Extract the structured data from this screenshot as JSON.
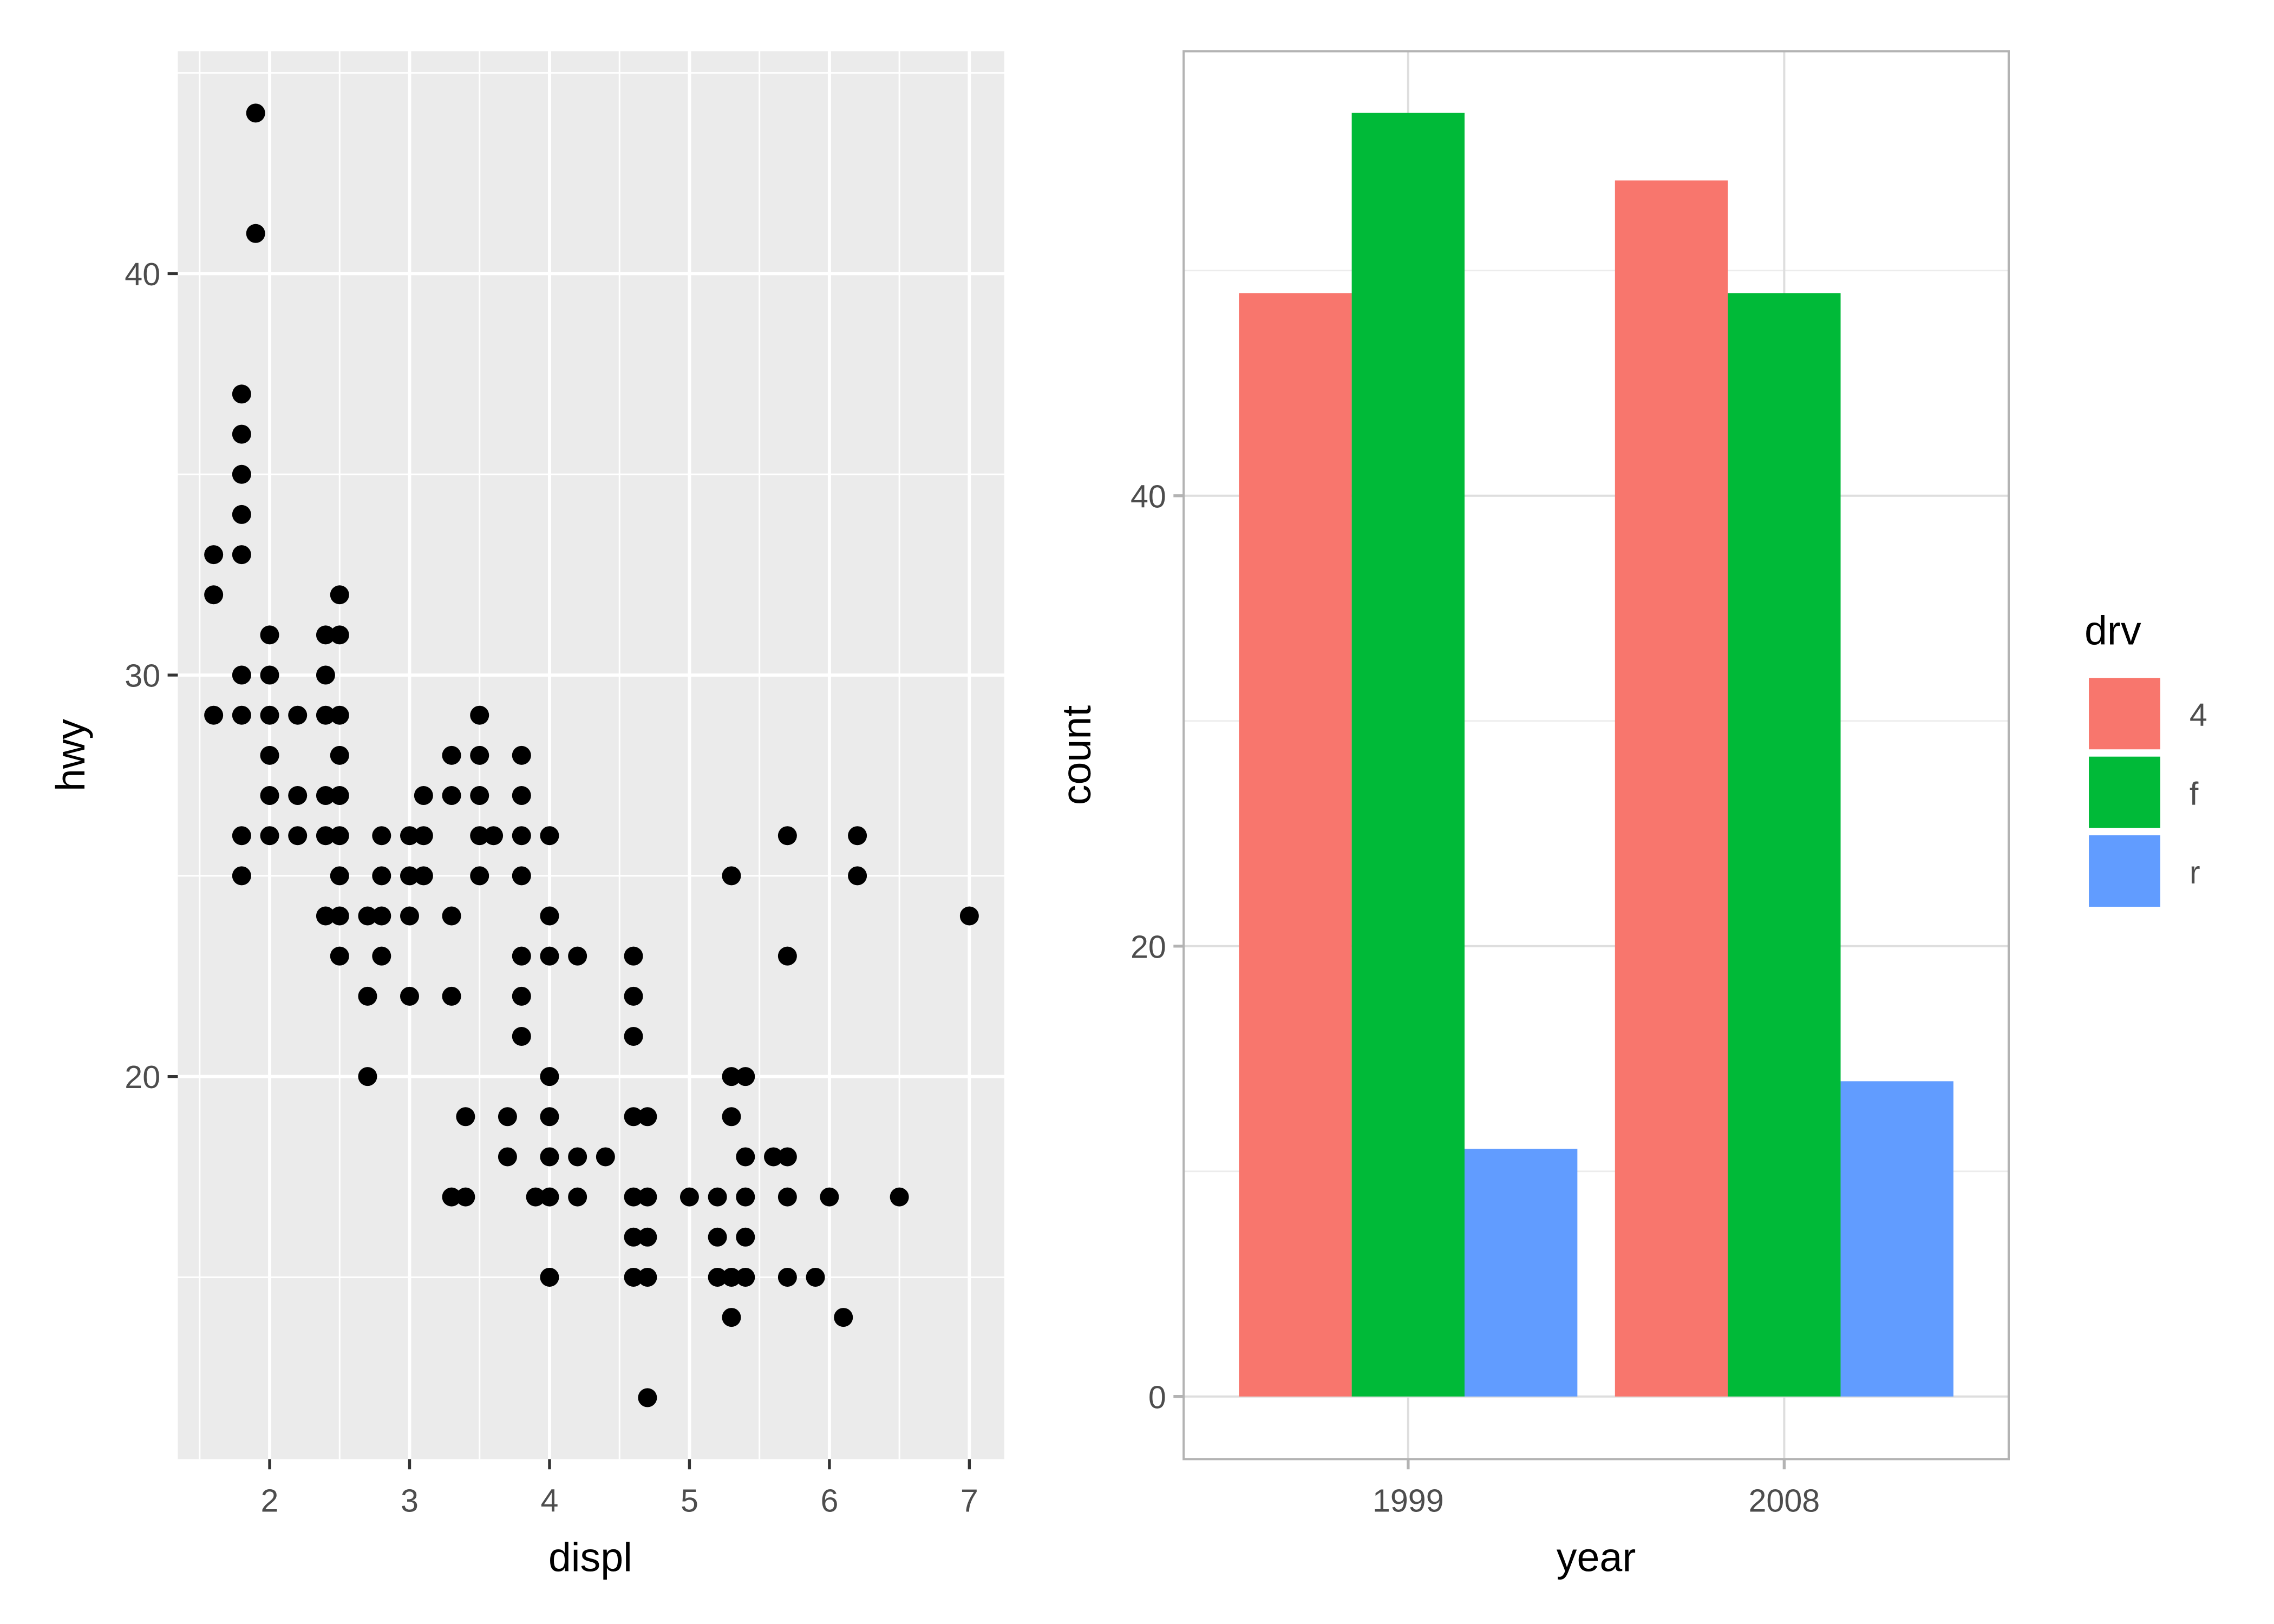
{
  "chart_data": [
    {
      "type": "scatter",
      "xlabel": "displ",
      "ylabel": "hwy",
      "xlim": [
        1.344,
        7.25
      ],
      "ylim": [
        10.47,
        45.54
      ],
      "xticks": [
        2,
        3,
        4,
        5,
        6,
        7
      ],
      "yticks": [
        20,
        30,
        40
      ],
      "grid": true,
      "points": [
        [
          1.9,
          44
        ],
        [
          1.9,
          41
        ],
        [
          1.8,
          37
        ],
        [
          1.8,
          36
        ],
        [
          1.8,
          35
        ],
        [
          1.8,
          34
        ],
        [
          1.8,
          33
        ],
        [
          1.6,
          33
        ],
        [
          1.6,
          32
        ],
        [
          1.6,
          29
        ],
        [
          1.8,
          30
        ],
        [
          1.8,
          29
        ],
        [
          1.8,
          26
        ],
        [
          1.8,
          25
        ],
        [
          2.0,
          31
        ],
        [
          2.0,
          30
        ],
        [
          2.0,
          29
        ],
        [
          2.0,
          28
        ],
        [
          2.0,
          27
        ],
        [
          2.0,
          26
        ],
        [
          2.2,
          29
        ],
        [
          2.2,
          27
        ],
        [
          2.2,
          26
        ],
        [
          2.4,
          31
        ],
        [
          2.4,
          30
        ],
        [
          2.4,
          29
        ],
        [
          2.4,
          27
        ],
        [
          2.4,
          26
        ],
        [
          2.4,
          24
        ],
        [
          2.5,
          32
        ],
        [
          2.5,
          31
        ],
        [
          2.5,
          29
        ],
        [
          2.5,
          28
        ],
        [
          2.5,
          27
        ],
        [
          2.5,
          26
        ],
        [
          2.5,
          25
        ],
        [
          2.5,
          24
        ],
        [
          2.5,
          23
        ],
        [
          2.7,
          24
        ],
        [
          2.7,
          22
        ],
        [
          2.7,
          20
        ],
        [
          2.8,
          26
        ],
        [
          2.8,
          25
        ],
        [
          2.8,
          24
        ],
        [
          2.8,
          23
        ],
        [
          3.0,
          26
        ],
        [
          3.0,
          25
        ],
        [
          3.0,
          24
        ],
        [
          3.0,
          22
        ],
        [
          3.1,
          27
        ],
        [
          3.1,
          26
        ],
        [
          3.1,
          25
        ],
        [
          3.3,
          28
        ],
        [
          3.3,
          27
        ],
        [
          3.3,
          24
        ],
        [
          3.3,
          22
        ],
        [
          3.3,
          17
        ],
        [
          3.4,
          19
        ],
        [
          3.4,
          17
        ],
        [
          3.5,
          29
        ],
        [
          3.5,
          28
        ],
        [
          3.5,
          27
        ],
        [
          3.5,
          26
        ],
        [
          3.5,
          25
        ],
        [
          3.6,
          26
        ],
        [
          3.7,
          19
        ],
        [
          3.7,
          18
        ],
        [
          3.8,
          28
        ],
        [
          3.8,
          27
        ],
        [
          3.8,
          26
        ],
        [
          3.8,
          25
        ],
        [
          3.8,
          23
        ],
        [
          3.8,
          22
        ],
        [
          3.8,
          21
        ],
        [
          3.9,
          17
        ],
        [
          4.0,
          26
        ],
        [
          4.0,
          24
        ],
        [
          4.0,
          23
        ],
        [
          4.0,
          20
        ],
        [
          4.0,
          19
        ],
        [
          4.0,
          18
        ],
        [
          4.0,
          17
        ],
        [
          4.0,
          15
        ],
        [
          4.2,
          23
        ],
        [
          4.2,
          18
        ],
        [
          4.2,
          17
        ],
        [
          4.4,
          18
        ],
        [
          4.6,
          23
        ],
        [
          4.6,
          22
        ],
        [
          4.6,
          21
        ],
        [
          4.6,
          19
        ],
        [
          4.6,
          17
        ],
        [
          4.6,
          16
        ],
        [
          4.6,
          15
        ],
        [
          4.7,
          19
        ],
        [
          4.7,
          17
        ],
        [
          4.7,
          16
        ],
        [
          4.7,
          15
        ],
        [
          4.7,
          12
        ],
        [
          5.0,
          17
        ],
        [
          5.2,
          17
        ],
        [
          5.2,
          16
        ],
        [
          5.2,
          15
        ],
        [
          5.3,
          25
        ],
        [
          5.3,
          20
        ],
        [
          5.3,
          19
        ],
        [
          5.3,
          15
        ],
        [
          5.3,
          14
        ],
        [
          5.4,
          20
        ],
        [
          5.4,
          18
        ],
        [
          5.4,
          17
        ],
        [
          5.4,
          16
        ],
        [
          5.4,
          15
        ],
        [
          5.6,
          18
        ],
        [
          5.7,
          26
        ],
        [
          5.7,
          23
        ],
        [
          5.7,
          18
        ],
        [
          5.7,
          17
        ],
        [
          5.7,
          15
        ],
        [
          5.9,
          15
        ],
        [
          6.0,
          17
        ],
        [
          6.1,
          14
        ],
        [
          6.2,
          26
        ],
        [
          6.2,
          25
        ],
        [
          6.5,
          17
        ],
        [
          7.0,
          24
        ]
      ]
    },
    {
      "type": "bar",
      "xlabel": "year",
      "ylabel": "count",
      "categories": [
        "1999",
        "2008"
      ],
      "ylim": [
        -2.78,
        59.74
      ],
      "yticks": [
        0,
        20,
        40
      ],
      "grid": true,
      "legend": {
        "title": "drv",
        "placement": "right"
      },
      "series": [
        {
          "name": "4",
          "color": "#F8766D",
          "values": [
            49,
            54
          ]
        },
        {
          "name": "f",
          "color": "#00BA38",
          "values": [
            57,
            49
          ]
        },
        {
          "name": "r",
          "color": "#619CFF",
          "values": [
            11,
            14
          ]
        }
      ]
    }
  ]
}
